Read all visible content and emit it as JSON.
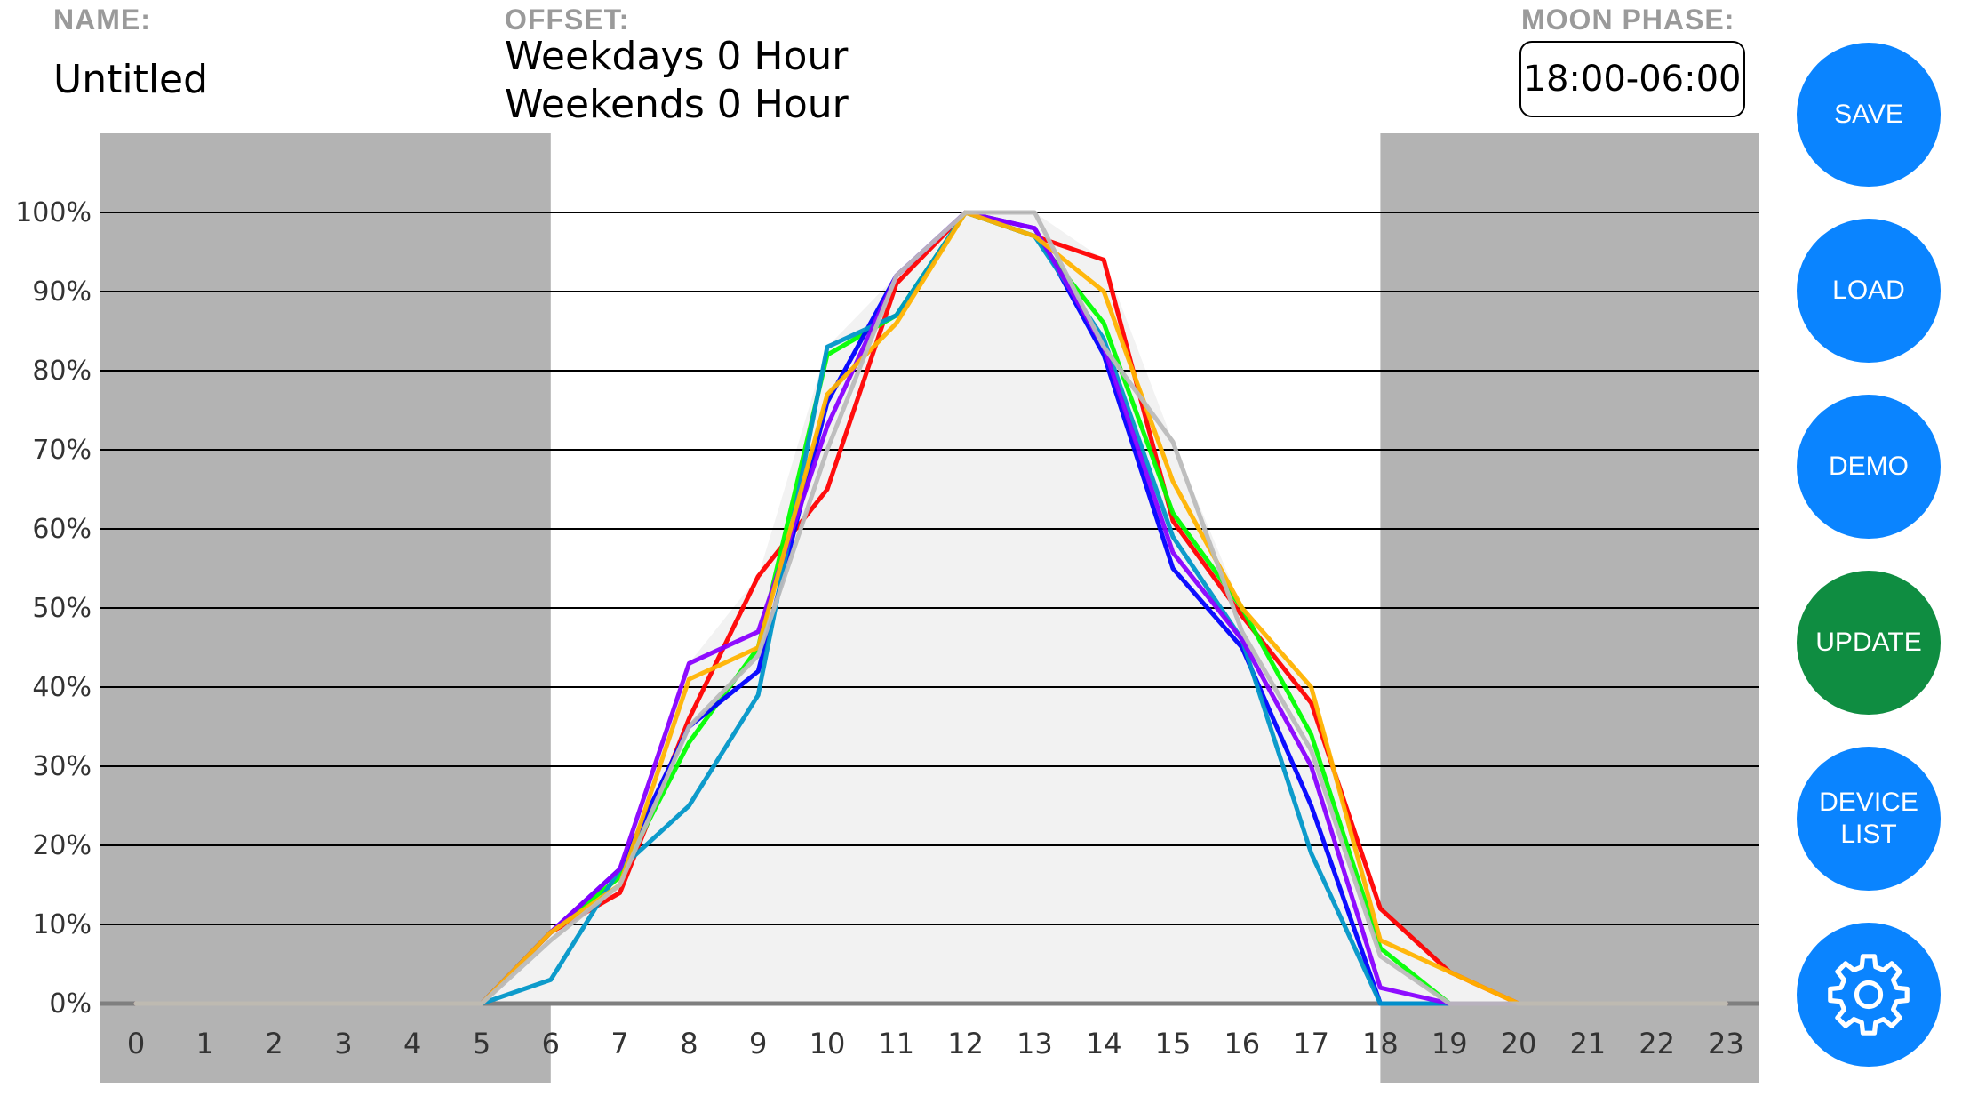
{
  "header": {
    "name_label": "NAME:",
    "name_value": "Untitled",
    "offset_label": "OFFSET:",
    "offset_weekdays": "Weekdays 0 Hour",
    "offset_weekends": "Weekends 0 Hour",
    "moon_label": "MOON PHASE:",
    "moon_value": "18:00-06:00"
  },
  "buttons": {
    "save": "SAVE",
    "load": "LOAD",
    "demo": "DEMO",
    "update": "UPDATE",
    "device_list": "DEVICE\nLIST",
    "settings_icon": "gear-icon"
  },
  "colors": {
    "button_blue": "#0a84ff",
    "button_green": "#0f8d41",
    "night_shade": "#b3b3b3"
  },
  "chart_data": {
    "type": "line",
    "x": [
      0,
      1,
      2,
      3,
      4,
      5,
      6,
      7,
      8,
      9,
      10,
      11,
      12,
      13,
      14,
      15,
      16,
      17,
      18,
      19,
      20,
      21,
      22,
      23
    ],
    "xlim": [
      0,
      23
    ],
    "ylim": [
      0,
      100
    ],
    "y_ticks": [
      "0%",
      "10%",
      "20%",
      "30%",
      "40%",
      "50%",
      "60%",
      "70%",
      "80%",
      "90%",
      "100%"
    ],
    "night_ranges": [
      [
        0,
        6
      ],
      [
        18,
        24
      ]
    ],
    "series": [
      {
        "color": "#ff0000",
        "values": [
          0,
          0,
          0,
          0,
          0,
          0,
          9,
          14,
          36,
          54,
          65,
          91,
          100,
          97,
          94,
          61,
          49,
          38,
          12,
          4,
          0,
          0,
          0,
          0
        ]
      },
      {
        "color": "#00ff00",
        "values": [
          0,
          0,
          0,
          0,
          0,
          0,
          9,
          16,
          33,
          45,
          82,
          87,
          100,
          97,
          86,
          62,
          50,
          34,
          7,
          0,
          0,
          0,
          0,
          0
        ]
      },
      {
        "color": "#0000ff",
        "values": [
          0,
          0,
          0,
          0,
          0,
          0,
          9,
          17,
          35,
          42,
          76,
          92,
          100,
          98,
          82,
          55,
          45,
          25,
          0,
          0,
          0,
          0,
          0,
          0
        ]
      },
      {
        "color": "#0096c8",
        "values": [
          0,
          0,
          0,
          0,
          0,
          0,
          3,
          17,
          25,
          39,
          83,
          87,
          100,
          97,
          84,
          59,
          46,
          19,
          0,
          0,
          0,
          0,
          0,
          0
        ]
      },
      {
        "color": "#8800ff",
        "values": [
          0,
          0,
          0,
          0,
          0,
          0,
          9,
          17,
          43,
          47,
          73,
          92,
          100,
          98,
          83,
          57,
          46,
          30,
          2,
          0,
          0,
          0,
          0,
          0
        ]
      },
      {
        "color": "#ffb300",
        "values": [
          0,
          0,
          0,
          0,
          0,
          0,
          9,
          15,
          41,
          45,
          77,
          86,
          100,
          97,
          90,
          66,
          50,
          40,
          8,
          4,
          0,
          0,
          0,
          0
        ]
      },
      {
        "color": "#bbbbbb",
        "values": [
          0,
          0,
          0,
          0,
          0,
          0,
          8,
          15,
          35,
          44,
          70,
          92,
          100,
          100,
          83,
          71,
          47,
          32,
          6,
          0,
          0,
          0,
          0,
          0
        ]
      }
    ]
  }
}
